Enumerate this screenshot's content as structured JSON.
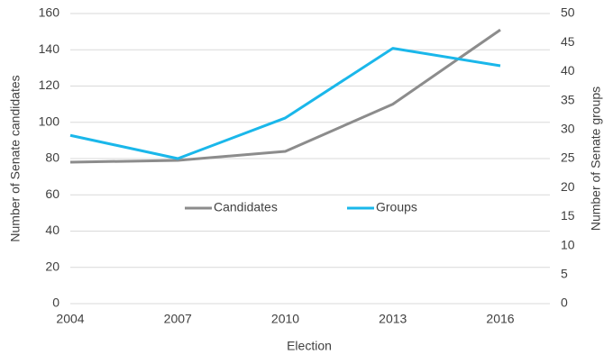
{
  "chart_data": {
    "type": "line",
    "x_label": "Election",
    "y_label": "Number of Senate candidates",
    "y2_label": "Number of Senate groups",
    "categories": [
      "2004",
      "2007",
      "2010",
      "2013",
      "2016"
    ],
    "series": [
      {
        "name": "Candidates",
        "color": "#8c8c8c",
        "values": [
          78,
          79,
          84,
          110,
          151
        ]
      },
      {
        "name": "Groups",
        "color": "#1ab7ea",
        "axis": "y2",
        "values": [
          29,
          25,
          32,
          44,
          41
        ]
      }
    ],
    "ylim": [
      0,
      160
    ],
    "yticks": [
      0,
      20,
      40,
      60,
      80,
      100,
      120,
      140,
      160
    ],
    "y2lim": [
      0,
      50
    ],
    "y2ticks": [
      0,
      5,
      10,
      15,
      20,
      25,
      30,
      35,
      40,
      45,
      50
    ],
    "grid": true,
    "legend": "center"
  }
}
